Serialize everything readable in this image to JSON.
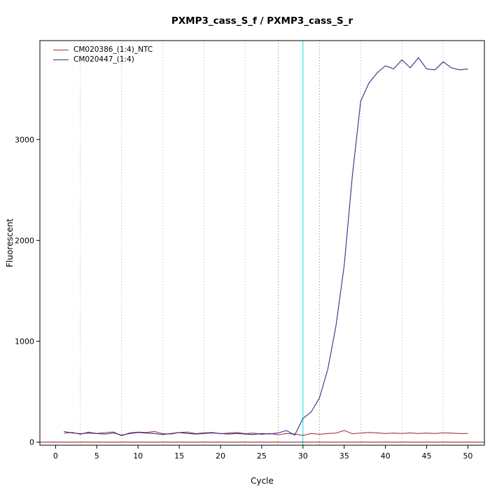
{
  "chart_data": {
    "type": "line",
    "title": "PXMP3_cass_S_f / PXMP3_cass_S_r",
    "xlabel": "Cycle",
    "ylabel": "Fluorescent",
    "xlim": [
      -1.9,
      52
    ],
    "ylim": [
      -30,
      3980
    ],
    "xticks": [
      0,
      5,
      10,
      15,
      20,
      25,
      30,
      35,
      40,
      45,
      50
    ],
    "yticks": [
      0,
      1000,
      2000,
      3000
    ],
    "grid": "dotted-vertical",
    "legend_position": "top-left-inside",
    "x": [
      1,
      2,
      3,
      4,
      5,
      6,
      7,
      8,
      9,
      10,
      11,
      12,
      13,
      14,
      15,
      16,
      17,
      18,
      19,
      20,
      21,
      22,
      23,
      24,
      25,
      26,
      27,
      28,
      29,
      30,
      31,
      32,
      33,
      34,
      35,
      36,
      37,
      38,
      39,
      40,
      41,
      42,
      43,
      44,
      45,
      46,
      47,
      48,
      49,
      50
    ],
    "series": [
      {
        "name": "CM020386_(1:4)_NTC",
        "color": "#A03A3A",
        "values": [
          88,
          97,
          78,
          100,
          86,
          95,
          102,
          64,
          92,
          100,
          96,
          106,
          84,
          80,
          96,
          100,
          85,
          92,
          96,
          84,
          90,
          96,
          84,
          90,
          78,
          86,
          74,
          86,
          80,
          68,
          86,
          78,
          86,
          90,
          116,
          84,
          90,
          96,
          92,
          86,
          90,
          86,
          92,
          86,
          90,
          86,
          92,
          90,
          86,
          86
        ]
      },
      {
        "name": "CM020447_(1:4)",
        "color": "#30308C",
        "values": [
          105,
          92,
          84,
          90,
          86,
          80,
          92,
          70,
          86,
          96,
          90,
          86,
          76,
          86,
          96,
          86,
          80,
          86,
          92,
          86,
          80,
          86,
          80,
          76,
          86,
          82,
          92,
          115,
          70,
          235,
          300,
          440,
          720,
          1150,
          1750,
          2650,
          3380,
          3560,
          3660,
          3730,
          3700,
          3790,
          3710,
          3810,
          3700,
          3690,
          3770,
          3710,
          3690,
          3700
        ]
      }
    ],
    "vlines": [
      {
        "x": 30,
        "color": "#00E5EE",
        "style": "solid",
        "name": "threshold-cycle-line"
      },
      {
        "x": 3,
        "color": "#B0B0B0",
        "style": "dotted",
        "name": "gridline"
      },
      {
        "x": 8,
        "color": "#B0B0B0",
        "style": "dotted",
        "name": "gridline"
      },
      {
        "x": 13,
        "color": "#B0B0B0",
        "style": "dotted",
        "name": "gridline"
      },
      {
        "x": 18,
        "color": "#B0B0B0",
        "style": "dotted",
        "name": "gridline"
      },
      {
        "x": 23,
        "color": "#B0B0B0",
        "style": "dotted",
        "name": "gridline"
      },
      {
        "x": 27,
        "color": "#CC6666",
        "style": "dotted",
        "name": "ct-marker-line"
      },
      {
        "x": 32,
        "color": "#CC6666",
        "style": "dotted",
        "name": "ct-marker-line"
      },
      {
        "x": 37,
        "color": "#B0B0B0",
        "style": "dotted",
        "name": "gridline"
      },
      {
        "x": 42,
        "color": "#B0B0B0",
        "style": "dotted",
        "name": "gridline"
      },
      {
        "x": 47,
        "color": "#B0B0B0",
        "style": "dotted",
        "name": "gridline"
      }
    ],
    "hlines": [
      {
        "y": 0,
        "color": "#8B1A1A",
        "style": "solid",
        "name": "baseline-zero-line"
      }
    ]
  }
}
